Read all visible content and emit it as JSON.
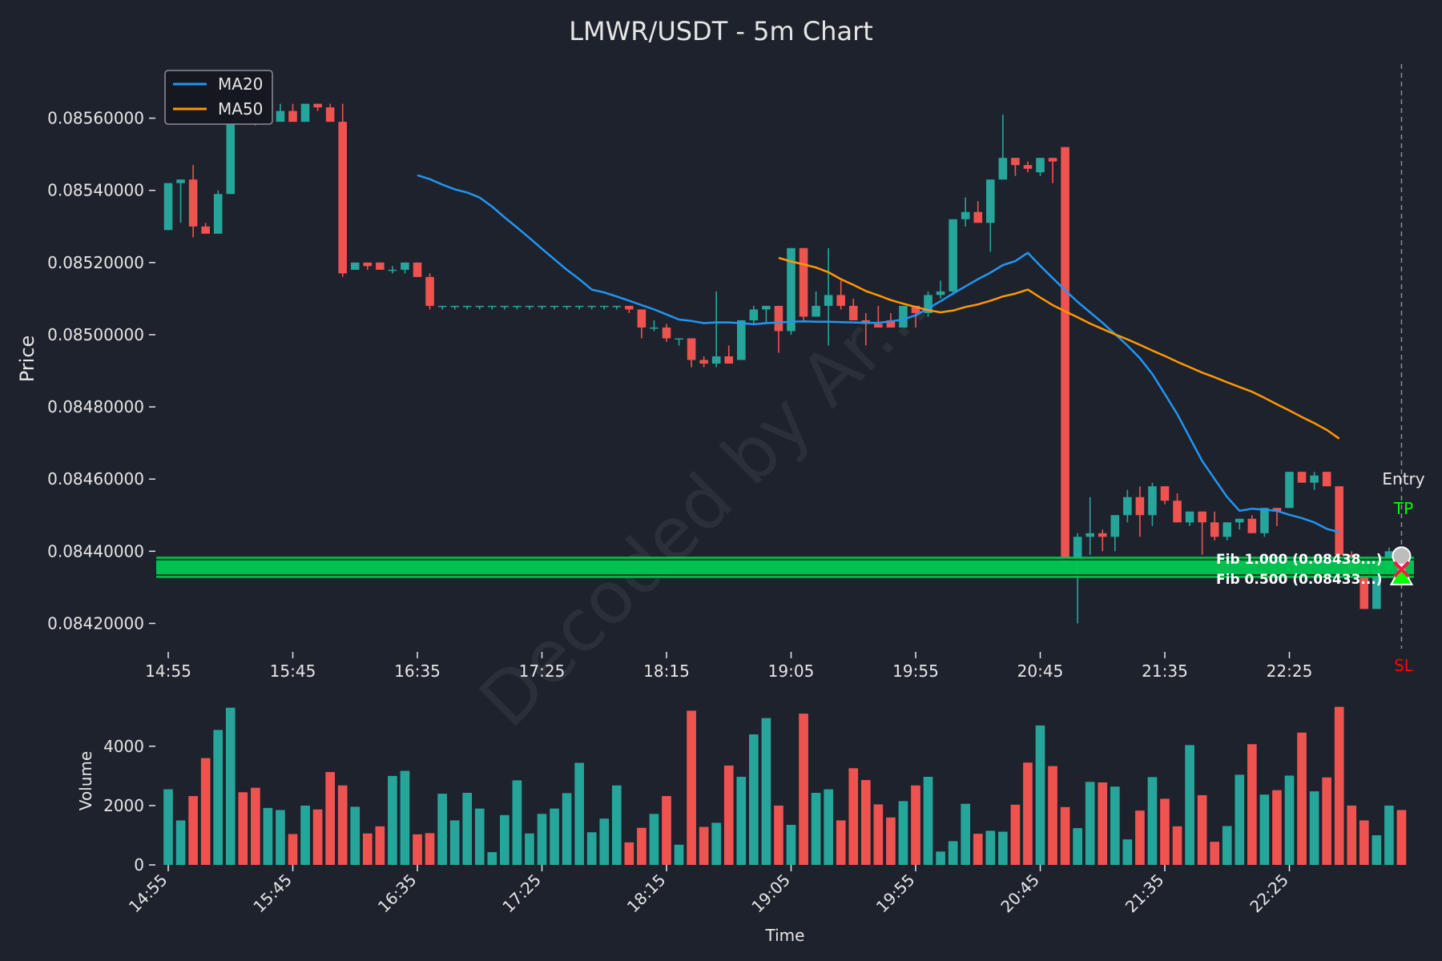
{
  "chart_data": {
    "type": "candlestick",
    "title": "LMWR/USDT - 5m Chart",
    "price_axis": {
      "ylabel": "Price",
      "ylim": [
        0.08413,
        0.08575
      ],
      "ticks": [
        "0.08420000",
        "0.08440000",
        "0.08460000",
        "0.08480000",
        "0.08500000",
        "0.08520000",
        "0.08540000",
        "0.08560000"
      ]
    },
    "volume_axis": {
      "ylabel": "Volume",
      "ylim": [
        0,
        5400
      ],
      "ticks": [
        "0",
        "2000",
        "4000"
      ]
    },
    "xlabel": "Time",
    "x_ticks": [
      "14:55",
      "15:45",
      "16:35",
      "17:25",
      "18:15",
      "19:05",
      "19:55",
      "20:45",
      "21:35",
      "22:25"
    ],
    "legend": {
      "position": "top-left",
      "entries": [
        {
          "name": "MA20",
          "color": "#2196f3"
        },
        {
          "name": "MA50",
          "color": "#ff9800"
        }
      ]
    },
    "colors": {
      "background": "#1e222d",
      "up": "#26a69a",
      "down": "#ef5350",
      "fib_zone": "#00c853",
      "tp": "#00ff00",
      "sl": "#ff0000",
      "text": "#e6e6e6"
    },
    "watermark": "Decoded by Ar...",
    "annotations": {
      "entry": "Entry",
      "tp": "TP",
      "sl": "SL",
      "fib_upper": "Fib 1.000 (0.08438...)",
      "fib_lower": "Fib 0.500 (0.08433...)"
    },
    "fib_zone": {
      "low": 0.084326,
      "high": 0.084385,
      "lines": [
        0.084334,
        0.084377
      ]
    },
    "candles": [
      [
        0.08529,
        0.08542,
        0.08529,
        0.08542
      ],
      [
        0.08542,
        0.08543,
        0.08531,
        0.08543
      ],
      [
        0.08543,
        0.08547,
        0.08527,
        0.0853
      ],
      [
        0.0853,
        0.08531,
        0.08528,
        0.08528
      ],
      [
        0.08528,
        0.0854,
        0.08528,
        0.08539
      ],
      [
        0.08539,
        0.08565,
        0.08539,
        0.08561
      ],
      [
        0.08561,
        0.08562,
        0.08559,
        0.0856
      ],
      [
        0.0856,
        0.08562,
        0.08558,
        0.08559
      ],
      [
        0.08559,
        0.08564,
        0.08559,
        0.08562
      ],
      [
        0.08559,
        0.08564,
        0.08559,
        0.08562
      ],
      [
        0.08562,
        0.08564,
        0.08559,
        0.08559
      ],
      [
        0.08559,
        0.08564,
        0.08559,
        0.08564
      ],
      [
        0.08564,
        0.08564,
        0.08562,
        0.08563
      ],
      [
        0.08563,
        0.08564,
        0.08559,
        0.08559
      ],
      [
        0.08559,
        0.08564,
        0.08516,
        0.08517
      ],
      [
        0.08518,
        0.0852,
        0.08518,
        0.0852
      ],
      [
        0.0852,
        0.0852,
        0.08518,
        0.08519
      ],
      [
        0.0852,
        0.0852,
        0.08518,
        0.08518
      ],
      [
        0.08518,
        0.08519,
        0.08517,
        0.08518
      ],
      [
        0.08518,
        0.0852,
        0.08517,
        0.0852
      ],
      [
        0.0852,
        0.0852,
        0.08516,
        0.08516
      ],
      [
        0.08516,
        0.08517,
        0.08507,
        0.08508
      ],
      [
        0.08508,
        0.08508,
        0.08507,
        0.08508
      ],
      [
        0.08508,
        0.08508,
        0.08507,
        0.08508
      ],
      [
        0.08508,
        0.08508,
        0.08507,
        0.08508
      ],
      [
        0.08508,
        0.08508,
        0.08507,
        0.08508
      ],
      [
        0.08508,
        0.08508,
        0.08507,
        0.08508
      ],
      [
        0.08508,
        0.08508,
        0.08507,
        0.08508
      ],
      [
        0.08508,
        0.08508,
        0.08507,
        0.08508
      ],
      [
        0.08508,
        0.08508,
        0.08507,
        0.08508
      ],
      [
        0.08508,
        0.08508,
        0.08507,
        0.08508
      ],
      [
        0.08508,
        0.08508,
        0.08507,
        0.08508
      ],
      [
        0.08508,
        0.08508,
        0.08507,
        0.08508
      ],
      [
        0.08508,
        0.08508,
        0.08507,
        0.08508
      ],
      [
        0.08508,
        0.08508,
        0.08507,
        0.08508
      ],
      [
        0.08508,
        0.08508,
        0.08507,
        0.08508
      ],
      [
        0.08508,
        0.08508,
        0.08507,
        0.08508
      ],
      [
        0.08508,
        0.08508,
        0.08506,
        0.08507
      ],
      [
        0.08507,
        0.08507,
        0.08499,
        0.08502
      ],
      [
        0.08502,
        0.08504,
        0.08501,
        0.08502
      ],
      [
        0.08502,
        0.08503,
        0.08498,
        0.08499
      ],
      [
        0.08499,
        0.08499,
        0.08497,
        0.08499
      ],
      [
        0.08499,
        0.08499,
        0.08491,
        0.08493
      ],
      [
        0.08493,
        0.08494,
        0.08491,
        0.08492
      ],
      [
        0.08492,
        0.08512,
        0.08491,
        0.08494
      ],
      [
        0.08494,
        0.08497,
        0.08492,
        0.08492
      ],
      [
        0.08493,
        0.08504,
        0.08493,
        0.08504
      ],
      [
        0.08504,
        0.08508,
        0.08503,
        0.08507
      ],
      [
        0.08507,
        0.08508,
        0.08503,
        0.08508
      ],
      [
        0.08508,
        0.08508,
        0.08495,
        0.08501
      ],
      [
        0.08501,
        0.08524,
        0.085,
        0.08524
      ],
      [
        0.08524,
        0.08524,
        0.08504,
        0.08505
      ],
      [
        0.08505,
        0.08512,
        0.08505,
        0.08508
      ],
      [
        0.08508,
        0.08524,
        0.08497,
        0.08511
      ],
      [
        0.08511,
        0.08515,
        0.08507,
        0.08508
      ],
      [
        0.08508,
        0.0851,
        0.08504,
        0.08504
      ],
      [
        0.08504,
        0.08506,
        0.08497,
        0.08503
      ],
      [
        0.08503,
        0.08508,
        0.08502,
        0.08502
      ],
      [
        0.08504,
        0.08506,
        0.08502,
        0.08502
      ],
      [
        0.08502,
        0.08508,
        0.08502,
        0.08508
      ],
      [
        0.08508,
        0.08508,
        0.08502,
        0.08506
      ],
      [
        0.08506,
        0.08512,
        0.08505,
        0.08511
      ],
      [
        0.08511,
        0.08515,
        0.0851,
        0.08512
      ],
      [
        0.08512,
        0.08532,
        0.08511,
        0.08532
      ],
      [
        0.08532,
        0.08538,
        0.0853,
        0.08534
      ],
      [
        0.08534,
        0.08537,
        0.08531,
        0.08531
      ],
      [
        0.08531,
        0.08543,
        0.08523,
        0.08543
      ],
      [
        0.08543,
        0.08561,
        0.08543,
        0.08549
      ],
      [
        0.08549,
        0.08549,
        0.08544,
        0.08547
      ],
      [
        0.08547,
        0.08548,
        0.08545,
        0.08546
      ],
      [
        0.08545,
        0.08549,
        0.08544,
        0.08549
      ],
      [
        0.08549,
        0.08549,
        0.08542,
        0.08548
      ],
      [
        0.08552,
        0.08552,
        0.08436,
        0.08437
      ],
      [
        0.08438,
        0.08445,
        0.0842,
        0.08444
      ],
      [
        0.08444,
        0.08455,
        0.08439,
        0.08445
      ],
      [
        0.08445,
        0.08446,
        0.0844,
        0.08444
      ],
      [
        0.08444,
        0.0845,
        0.0844,
        0.0845
      ],
      [
        0.0845,
        0.08457,
        0.08448,
        0.08455
      ],
      [
        0.08455,
        0.08458,
        0.08444,
        0.0845
      ],
      [
        0.0845,
        0.08459,
        0.08447,
        0.08458
      ],
      [
        0.08458,
        0.08458,
        0.08453,
        0.08454
      ],
      [
        0.08454,
        0.08456,
        0.08448,
        0.08448
      ],
      [
        0.08448,
        0.08451,
        0.08447,
        0.08451
      ],
      [
        0.08451,
        0.08451,
        0.08439,
        0.08448
      ],
      [
        0.08448,
        0.08451,
        0.08443,
        0.08444
      ],
      [
        0.08444,
        0.08448,
        0.08443,
        0.08448
      ],
      [
        0.08448,
        0.08449,
        0.08446,
        0.08449
      ],
      [
        0.08449,
        0.0845,
        0.08445,
        0.08445
      ],
      [
        0.08445,
        0.08452,
        0.08444,
        0.08452
      ],
      [
        0.08452,
        0.08452,
        0.08447,
        0.08451
      ],
      [
        0.08452,
        0.08462,
        0.08452,
        0.08462
      ],
      [
        0.08462,
        0.08462,
        0.08459,
        0.08459
      ],
      [
        0.08459,
        0.08462,
        0.08457,
        0.08461
      ],
      [
        0.08462,
        0.08462,
        0.08458,
        0.08458
      ],
      [
        0.08458,
        0.08458,
        0.08438,
        0.08439
      ],
      [
        0.08439,
        0.0844,
        0.08434,
        0.08435
      ],
      [
        0.08435,
        0.08436,
        0.08424,
        0.08424
      ],
      [
        0.08424,
        0.08436,
        0.08424,
        0.08435
      ],
      [
        0.08435,
        0.08441,
        0.08434,
        0.0844
      ],
      [
        0.0844,
        0.0844,
        0.08434,
        0.08434
      ]
    ],
    "volumes": [
      2550,
      1500,
      2320,
      3600,
      4550,
      5300,
      2450,
      2600,
      1920,
      1850,
      1040,
      2000,
      1870,
      3130,
      2680,
      1960,
      1060,
      1300,
      3000,
      3170,
      1030,
      1070,
      2400,
      1500,
      2430,
      1900,
      430,
      1680,
      2850,
      1060,
      1720,
      1900,
      2420,
      3440,
      1100,
      1560,
      2680,
      760,
      1250,
      1720,
      2320,
      680,
      5200,
      1280,
      1420,
      3350,
      2970,
      4400,
      4950,
      2000,
      1350,
      5100,
      2430,
      2550,
      1500,
      3260,
      2860,
      2040,
      1600,
      2150,
      2680,
      2970,
      450,
      800,
      2060,
      1050,
      1150,
      1120,
      2030,
      3450,
      4700,
      3330,
      1950,
      1240,
      2800,
      2780,
      2640,
      860,
      1830,
      2960,
      2230,
      1300,
      4040,
      2350,
      780,
      1310,
      3040,
      4070,
      2370,
      2520,
      3010,
      4460,
      2480,
      2950,
      5330,
      2000,
      1500,
      1000,
      2000,
      1850
    ],
    "ma20": [
      [
        20,
        0.085442
      ],
      [
        21,
        0.085431
      ],
      [
        22,
        0.085416
      ],
      [
        23,
        0.085403
      ],
      [
        24,
        0.085394
      ],
      [
        25,
        0.08538
      ],
      [
        26,
        0.085355
      ],
      [
        27,
        0.085325
      ],
      [
        28,
        0.085297
      ],
      [
        29,
        0.085268
      ],
      [
        30,
        0.085238
      ],
      [
        31,
        0.085209
      ],
      [
        32,
        0.08518
      ],
      [
        33,
        0.085154
      ],
      [
        34,
        0.085125
      ],
      [
        35,
        0.085117
      ],
      [
        36,
        0.085106
      ],
      [
        37,
        0.085094
      ],
      [
        38,
        0.085082
      ],
      [
        39,
        0.08507
      ],
      [
        40,
        0.085056
      ],
      [
        41,
        0.085042
      ],
      [
        42,
        0.085038
      ],
      [
        43,
        0.085032
      ],
      [
        44,
        0.085034
      ],
      [
        45,
        0.085034
      ],
      [
        46,
        0.085032
      ],
      [
        47,
        0.085029
      ],
      [
        48,
        0.085032
      ],
      [
        49,
        0.085034
      ],
      [
        50,
        0.085036
      ],
      [
        51,
        0.085037
      ],
      [
        52,
        0.085036
      ],
      [
        53,
        0.085036
      ],
      [
        54,
        0.085035
      ],
      [
        55,
        0.085034
      ],
      [
        56,
        0.085033
      ],
      [
        57,
        0.085033
      ],
      [
        58,
        0.085037
      ],
      [
        59,
        0.085042
      ],
      [
        60,
        0.085054
      ],
      [
        61,
        0.085073
      ],
      [
        62,
        0.085093
      ],
      [
        63,
        0.085114
      ],
      [
        64,
        0.085134
      ],
      [
        65,
        0.085154
      ],
      [
        66,
        0.085172
      ],
      [
        67,
        0.085193
      ],
      [
        68,
        0.085204
      ],
      [
        69,
        0.085227
      ],
      [
        70,
        0.085191
      ],
      [
        71,
        0.085157
      ],
      [
        72,
        0.085123
      ],
      [
        73,
        0.085091
      ],
      [
        74,
        0.085062
      ],
      [
        75,
        0.085033
      ],
      [
        76,
        0.085002
      ],
      [
        77,
        0.08497
      ],
      [
        78,
        0.084935
      ],
      [
        79,
        0.084891
      ],
      [
        80,
        0.084836
      ],
      [
        81,
        0.08478
      ],
      [
        82,
        0.084715
      ],
      [
        83,
        0.08465
      ],
      [
        84,
        0.0846
      ],
      [
        85,
        0.08455
      ],
      [
        86,
        0.084512
      ],
      [
        87,
        0.084518
      ],
      [
        88,
        0.084515
      ],
      [
        89,
        0.084512
      ],
      [
        90,
        0.084501
      ],
      [
        91,
        0.084492
      ],
      [
        92,
        0.08448
      ],
      [
        93,
        0.084462
      ],
      [
        94,
        0.084453
      ]
    ],
    "ma50": [
      [
        49,
        0.085213
      ],
      [
        50,
        0.085203
      ],
      [
        51,
        0.085195
      ],
      [
        52,
        0.085186
      ],
      [
        53,
        0.085173
      ],
      [
        54,
        0.085154
      ],
      [
        55,
        0.085138
      ],
      [
        56,
        0.085121
      ],
      [
        57,
        0.085109
      ],
      [
        58,
        0.085096
      ],
      [
        59,
        0.085086
      ],
      [
        60,
        0.085077
      ],
      [
        61,
        0.085068
      ],
      [
        62,
        0.085062
      ],
      [
        63,
        0.085067
      ],
      [
        64,
        0.085077
      ],
      [
        65,
        0.085084
      ],
      [
        66,
        0.085094
      ],
      [
        67,
        0.085106
      ],
      [
        68,
        0.085114
      ],
      [
        69,
        0.085125
      ],
      [
        70,
        0.085103
      ],
      [
        71,
        0.085082
      ],
      [
        72,
        0.085065
      ],
      [
        73,
        0.085048
      ],
      [
        74,
        0.085031
      ],
      [
        75,
        0.085016
      ],
      [
        76,
        0.085001
      ],
      [
        77,
        0.084987
      ],
      [
        78,
        0.084972
      ],
      [
        79,
        0.084956
      ],
      [
        80,
        0.084941
      ],
      [
        81,
        0.084925
      ],
      [
        82,
        0.08491
      ],
      [
        83,
        0.084895
      ],
      [
        84,
        0.084882
      ],
      [
        85,
        0.084868
      ],
      [
        86,
        0.084855
      ],
      [
        87,
        0.084842
      ],
      [
        88,
        0.084825
      ],
      [
        89,
        0.084807
      ],
      [
        90,
        0.08479
      ],
      [
        91,
        0.084772
      ],
      [
        92,
        0.084755
      ],
      [
        93,
        0.084736
      ],
      [
        94,
        0.084712
      ]
    ]
  }
}
